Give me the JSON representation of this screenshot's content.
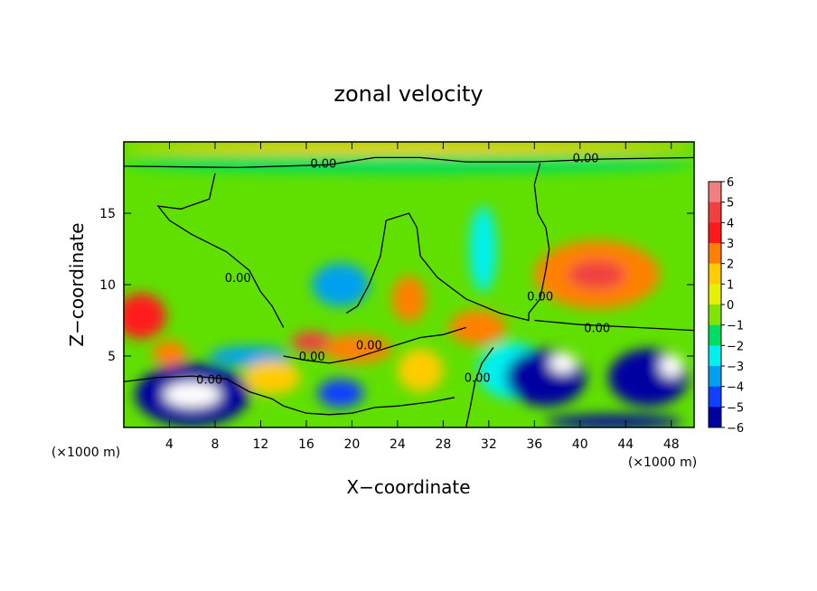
{
  "chart_data": {
    "type": "heatmap",
    "title": "zonal velocity",
    "xlabel": "X−coordinate",
    "ylabel": "Z−coordinate",
    "x_unit_left": "(×1000 m)",
    "x_unit_right": "(×1000 m)",
    "xlim": [
      0,
      50
    ],
    "ylim": [
      0,
      20
    ],
    "x_ticks": [
      {
        "value": 4,
        "label": "4"
      },
      {
        "value": 8,
        "label": "8"
      },
      {
        "value": 12,
        "label": "12"
      },
      {
        "value": 16,
        "label": "16"
      },
      {
        "value": 20,
        "label": "20"
      },
      {
        "value": 24,
        "label": "24"
      },
      {
        "value": 28,
        "label": "28"
      },
      {
        "value": 32,
        "label": "32"
      },
      {
        "value": 36,
        "label": "36"
      },
      {
        "value": 40,
        "label": "40"
      },
      {
        "value": 44,
        "label": "44"
      },
      {
        "value": 48,
        "label": "48"
      }
    ],
    "y_ticks": [
      {
        "value": 5,
        "label": "5"
      },
      {
        "value": 10,
        "label": "10"
      },
      {
        "value": 15,
        "label": "15"
      }
    ],
    "colorbar": {
      "min": -6,
      "max": 6,
      "levels": [
        {
          "value": 6,
          "label": "6",
          "color": "#f08080"
        },
        {
          "value": 5,
          "label": "5",
          "color": "#f04040"
        },
        {
          "value": 4,
          "label": "4",
          "color": "#ff1a1a"
        },
        {
          "value": 3,
          "label": "3",
          "color": "#ff8000"
        },
        {
          "value": 2,
          "label": "2",
          "color": "#ffcc00"
        },
        {
          "value": 1,
          "label": "1",
          "color": "#e6f000"
        },
        {
          "value": 0,
          "label": "0",
          "color": "#80e600"
        },
        {
          "value": -1,
          "label": "−1",
          "color": "#00dd60"
        },
        {
          "value": -2,
          "label": "−2",
          "color": "#00f0ee"
        },
        {
          "value": -3,
          "label": "−3",
          "color": "#00a0f0"
        },
        {
          "value": -4,
          "label": "−4",
          "color": "#1040ff"
        },
        {
          "value": -5,
          "label": "−5",
          "color": "#0000a0"
        },
        {
          "value": -6,
          "label": "−6",
          "color": "#7000a0"
        }
      ]
    },
    "background_color": "#60e000",
    "features": [
      {
        "x": 6,
        "z": 2.3,
        "rx": 5,
        "rz": 2.2,
        "value": -5
      },
      {
        "x": 6,
        "z": 2.3,
        "rx": 2.5,
        "rz": 0.9,
        "value": -7
      },
      {
        "x": 1.5,
        "z": 7.8,
        "rx": 2.2,
        "rz": 1.6,
        "value": 4
      },
      {
        "x": 4,
        "z": 5.2,
        "rx": 1.5,
        "rz": 0.9,
        "value": 3
      },
      {
        "x": 11,
        "z": 5,
        "rx": 3.5,
        "rz": 0.7,
        "value": -3
      },
      {
        "x": 13,
        "z": 3.5,
        "rx": 2.5,
        "rz": 1.2,
        "value": 2
      },
      {
        "x": 16.5,
        "z": 6,
        "rx": 1.8,
        "rz": 0.7,
        "value": 5
      },
      {
        "x": 19,
        "z": 2.4,
        "rx": 2,
        "rz": 1,
        "value": -4
      },
      {
        "x": 20.5,
        "z": 5.5,
        "rx": 3,
        "rz": 1,
        "value": 3
      },
      {
        "x": 19,
        "z": 10,
        "rx": 2.5,
        "rz": 1.5,
        "value": -3
      },
      {
        "x": 25,
        "z": 9,
        "rx": 1.5,
        "rz": 1.6,
        "value": 3
      },
      {
        "x": 26,
        "z": 4,
        "rx": 2,
        "rz": 1.5,
        "value": 2
      },
      {
        "x": 31,
        "z": 7,
        "rx": 2.5,
        "rz": 1.2,
        "value": 3
      },
      {
        "x": 34,
        "z": 4,
        "rx": 3,
        "rz": 2,
        "value": -2
      },
      {
        "x": 31.5,
        "z": 12.5,
        "rx": 1.2,
        "rz": 3,
        "value": -2
      },
      {
        "x": 37,
        "z": 3.5,
        "rx": 3.5,
        "rz": 2,
        "value": -5
      },
      {
        "x": 38.5,
        "z": 4.5,
        "rx": 1.2,
        "rz": 0.7,
        "value": -7
      },
      {
        "x": 41.5,
        "z": 10.7,
        "rx": 5.5,
        "rz": 2.4,
        "value": 3
      },
      {
        "x": 41.5,
        "z": 10.7,
        "rx": 2.5,
        "rz": 1,
        "value": 5
      },
      {
        "x": 46,
        "z": 3.5,
        "rx": 3.5,
        "rz": 2,
        "value": -5
      },
      {
        "x": 48,
        "z": 4.3,
        "rx": 1,
        "rz": 0.8,
        "value": -7
      },
      {
        "x": 25,
        "z": 19.6,
        "rx": 25,
        "rz": 0.4,
        "value": 2
      },
      {
        "x": 25,
        "z": 18.5,
        "rx": 25,
        "rz": 0.7,
        "value": -1
      },
      {
        "x": 43,
        "z": 0.4,
        "rx": 6,
        "rz": 0.5,
        "value": -5
      }
    ],
    "contour_labels": [
      {
        "x": 17.5,
        "z": 18.5,
        "text": "0.00"
      },
      {
        "x": 40.5,
        "z": 18.9,
        "text": "0.00"
      },
      {
        "x": 10,
        "z": 10.5,
        "text": "0.00"
      },
      {
        "x": 36.5,
        "z": 9.2,
        "text": "0.00"
      },
      {
        "x": 41.5,
        "z": 7,
        "text": "0.00"
      },
      {
        "x": 16.5,
        "z": 5,
        "text": "0.00"
      },
      {
        "x": 21.5,
        "z": 5.8,
        "text": "0.00"
      },
      {
        "x": 31,
        "z": 3.5,
        "text": "0.00"
      },
      {
        "x": 7.5,
        "z": 3.4,
        "text": "0.00"
      }
    ],
    "contour_paths": [
      [
        [
          0,
          18.3
        ],
        [
          10,
          18.2
        ],
        [
          18,
          18.4
        ],
        [
          22,
          18.9
        ],
        [
          26,
          18.9
        ],
        [
          30,
          18.6
        ],
        [
          36,
          18.6
        ],
        [
          42,
          18.8
        ],
        [
          50,
          18.9
        ]
      ],
      [
        [
          8,
          17.8
        ],
        [
          7.5,
          16
        ],
        [
          5,
          15.3
        ],
        [
          3,
          15.5
        ],
        [
          4,
          14.5
        ],
        [
          6,
          13.5
        ],
        [
          9,
          12.3
        ],
        [
          11,
          11
        ],
        [
          12,
          9.5
        ],
        [
          13,
          8.5
        ],
        [
          14,
          7
        ]
      ],
      [
        [
          36.5,
          18.5
        ],
        [
          36,
          17
        ],
        [
          36.3,
          15
        ],
        [
          37,
          14
        ],
        [
          37.3,
          12.5
        ],
        [
          37,
          11
        ],
        [
          36.5,
          9
        ],
        [
          35.5,
          8
        ],
        [
          35.5,
          7.5
        ],
        [
          33,
          8
        ],
        [
          30,
          9
        ],
        [
          27.5,
          10.5
        ],
        [
          26,
          12
        ],
        [
          25.7,
          14
        ],
        [
          25,
          15
        ],
        [
          23,
          14.5
        ],
        [
          22.5,
          12
        ],
        [
          21.5,
          10
        ],
        [
          20.5,
          8.5
        ],
        [
          19.5,
          8
        ]
      ],
      [
        [
          36,
          7.5
        ],
        [
          40,
          7.2
        ],
        [
          45,
          7
        ],
        [
          50,
          6.8
        ]
      ],
      [
        [
          0,
          3.2
        ],
        [
          3,
          3.5
        ],
        [
          6,
          3.6
        ],
        [
          9,
          3.4
        ],
        [
          11,
          2.5
        ],
        [
          13,
          2
        ],
        [
          14,
          1.5
        ],
        [
          16,
          1
        ],
        [
          18,
          0.9
        ],
        [
          20,
          1
        ],
        [
          22,
          1.4
        ],
        [
          24,
          1.5
        ],
        [
          27,
          1.8
        ],
        [
          29,
          2.1
        ]
      ],
      [
        [
          14,
          5
        ],
        [
          16,
          4.7
        ],
        [
          18,
          4.5
        ],
        [
          20,
          4.8
        ],
        [
          22,
          5.3
        ],
        [
          24,
          5.8
        ],
        [
          26,
          6.3
        ],
        [
          28,
          6.5
        ],
        [
          30,
          7
        ]
      ],
      [
        [
          30,
          0
        ],
        [
          30.4,
          1.5
        ],
        [
          30.8,
          3.2
        ],
        [
          31.4,
          4.5
        ],
        [
          32.4,
          5.6
        ]
      ]
    ]
  }
}
